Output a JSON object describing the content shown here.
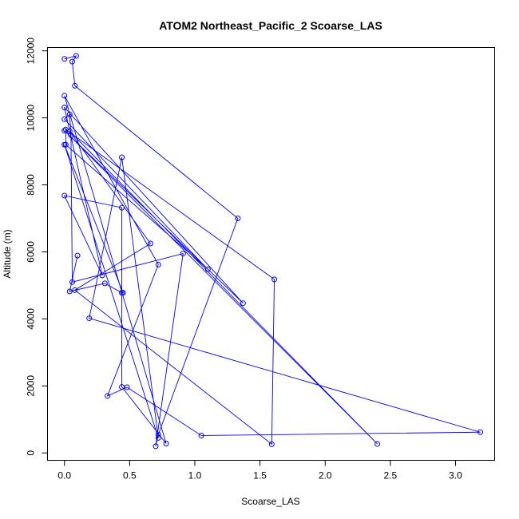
{
  "chart_data": {
    "type": "line",
    "title": "ATOM2 Northeast_Pacific_2 Scoarse_LAS",
    "xlabel": "Scoarse_LAS",
    "ylabel": "Altitude (m)",
    "xlim": [
      -0.13,
      3.3
    ],
    "ylim": [
      -220,
      12100
    ],
    "x_ticks": [
      0.0,
      0.5,
      1.0,
      1.5,
      2.0,
      2.5,
      3.0
    ],
    "x_tick_labels": [
      "0.0",
      "0.5",
      "1.0",
      "1.5",
      "2.0",
      "2.5",
      "3.0"
    ],
    "y_ticks": [
      0,
      2000,
      4000,
      6000,
      8000,
      10000,
      12000
    ],
    "y_tick_labels": [
      "0",
      "2000",
      "4000",
      "6000",
      "8000",
      "10000",
      "12000"
    ],
    "grid": false,
    "color": "#0000ff",
    "marker": "open-circle",
    "series": [
      {
        "x": [
          0.0,
          0.09,
          0.06,
          0.08,
          1.33,
          0.72,
          0.7,
          0.91,
          0.06,
          0.05,
          0.04,
          0.0,
          1.1,
          0.01,
          0.01,
          1.61,
          1.59,
          0.08,
          0.66,
          0.04,
          2.4,
          0.0,
          1.37,
          0.0,
          0.29,
          0.0,
          0.44,
          0.44,
          0.78,
          0.0,
          0.72,
          0.33,
          0.48,
          1.05,
          3.19,
          0.19,
          0.44,
          0.72,
          0.0,
          0.45,
          0.44,
          0.31,
          0.04,
          0.1
        ],
        "y": [
          11760,
          11850,
          11680,
          10960,
          7000,
          550,
          200,
          5950,
          5100,
          9480,
          10100,
          9960,
          5480,
          9200,
          9650,
          5180,
          260,
          4860,
          6250,
          9600,
          270,
          9620,
          4470,
          10310,
          5300,
          7680,
          7320,
          1970,
          280,
          10660,
          5620,
          1700,
          1960,
          520,
          620,
          4020,
          8820,
          450,
          9200,
          4780,
          4780,
          5060,
          4820,
          5890
        ]
      }
    ]
  }
}
